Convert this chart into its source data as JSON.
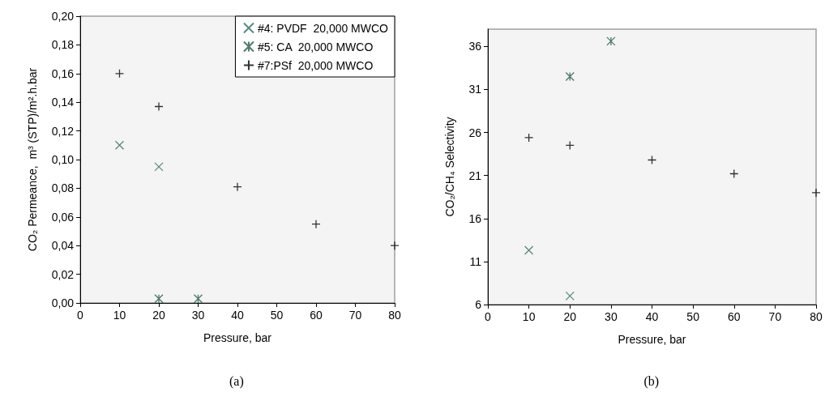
{
  "chart_data": [
    {
      "type": "scatter",
      "xlabel": "Pressure, bar",
      "ylabel": "CO₂ Permeance,  m³ (STP)/m².h.bar",
      "annotations": [
        "(a)"
      ],
      "xlim": [
        0,
        80
      ],
      "xticks": [
        0,
        10,
        20,
        30,
        40,
        50,
        60,
        70,
        80
      ],
      "ylim": [
        0,
        0.2
      ],
      "yticks": [
        {
          "value": 0,
          "label": "0,00"
        },
        {
          "value": 0.02,
          "label": "0,02"
        },
        {
          "value": 0.04,
          "label": "0,04"
        },
        {
          "value": 0.06,
          "label": "0,06"
        },
        {
          "value": 0.08,
          "label": "0,08"
        },
        {
          "value": 0.1,
          "label": "0,10"
        },
        {
          "value": 0.12,
          "label": "0,12"
        },
        {
          "value": 0.14,
          "label": "0,14"
        },
        {
          "value": 0.16,
          "label": "0,16"
        },
        {
          "value": 0.18,
          "label": "0,18"
        },
        {
          "value": 0.2,
          "label": "0,20"
        }
      ],
      "grid": false,
      "legend": "top right",
      "series": [
        {
          "name": "#4: PVDF  20,000 MWCO",
          "color": "#2e6e62",
          "marker": "x",
          "x": [
            10,
            20
          ],
          "values": [
            0.11,
            0.095
          ]
        },
        {
          "name": "#5: CA  20,000 MWCO",
          "color": "#1f5a45",
          "marker": "cross",
          "x": [
            20,
            30
          ],
          "values": [
            0.003,
            0.003
          ]
        },
        {
          "name": "#7:PSf  20,000 MWCO",
          "color": "#000000",
          "marker": "plus",
          "x": [
            10,
            20,
            40,
            60,
            80
          ],
          "values": [
            0.16,
            0.137,
            0.081,
            0.055,
            0.04
          ]
        }
      ]
    },
    {
      "type": "scatter",
      "xlabel": "Pressure, bar",
      "ylabel": "CO₂/CH₄ Selectivity",
      "annotations": [
        "(b)"
      ],
      "xlim": [
        0,
        80
      ],
      "xticks": [
        0,
        10,
        20,
        30,
        40,
        50,
        60,
        70,
        80
      ],
      "ylim": [
        6,
        38
      ],
      "yticks": [
        6,
        11,
        16,
        21,
        26,
        31,
        36
      ],
      "grid": false,
      "legend": false,
      "series": [
        {
          "color": "#2e6e62",
          "marker": "x",
          "x": [
            10,
            20
          ],
          "values": [
            12.3,
            7.0
          ]
        },
        {
          "color": "#1f5a45",
          "marker": "cross",
          "x": [
            20,
            30
          ],
          "values": [
            32.5,
            36.6
          ]
        },
        {
          "color": "#000000",
          "marker": "plus",
          "x": [
            10,
            20,
            40,
            60,
            80
          ],
          "values": [
            25.4,
            24.5,
            22.8,
            21.2,
            19.0
          ]
        }
      ]
    }
  ]
}
